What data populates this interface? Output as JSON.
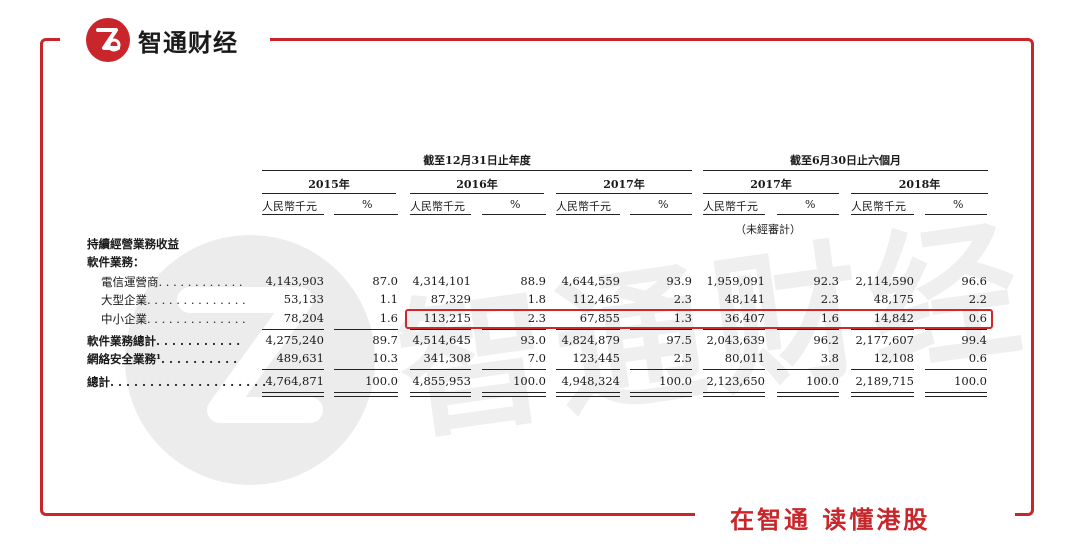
{
  "brand": {
    "name": "智通财经",
    "slogan": "在智通 读懂港股",
    "accent": "#c8262a"
  },
  "headers": {
    "group1": "截至12月31日止年度",
    "group2": "截至6月30日止六個月",
    "years": [
      "2015年",
      "2016年",
      "2017年",
      "2017年",
      "2018年"
    ],
    "unit": "人民幣千元",
    "pct": "%",
    "unaudited": "（未經審計）"
  },
  "rows": [
    {
      "label": "持續經營業務收益",
      "bold": true,
      "values": []
    },
    {
      "label": "軟件業務：",
      "bold": true,
      "values": []
    },
    {
      "label": "電信運營商. . . . . . . . . . . .",
      "bold": false,
      "values": [
        "4,143,903",
        "87.0",
        "4,314,101",
        "88.9",
        "4,644,559",
        "93.9",
        "1,959,091",
        "92.3",
        "2,114,590",
        "96.6"
      ]
    },
    {
      "label": "大型企業. . . . . . . . . . . . . .",
      "bold": false,
      "values": [
        "53,133",
        "1.1",
        "87,329",
        "1.8",
        "112,465",
        "2.3",
        "48,141",
        "2.3",
        "48,175",
        "2.2"
      ]
    },
    {
      "label": "中小企業. . . . . . . . . . . . . .",
      "bold": false,
      "values": [
        "78,204",
        "1.6",
        "113,215",
        "2.3",
        "67,855",
        "1.3",
        "36,407",
        "1.6",
        "14,842",
        "0.6"
      ]
    },
    {
      "label": "軟件業務總計. . . . . . . . . . .",
      "bold": true,
      "values": [
        "4,275,240",
        "89.7",
        "4,514,645",
        "93.0",
        "4,824,879",
        "97.5",
        "2,043,639",
        "96.2",
        "2,177,607",
        "99.4"
      ]
    },
    {
      "label": "網絡安全業務¹. . . . . . . . . .",
      "bold": true,
      "values": [
        "489,631",
        "10.3",
        "341,308",
        "7.0",
        "123,445",
        "2.5",
        "80,011",
        "3.8",
        "12,108",
        "0.6"
      ]
    },
    {
      "label": "總計. . . . . . . . . . . . . . . . . . . .",
      "bold": true,
      "values": [
        "4,764,871",
        "100.0",
        "4,855,953",
        "100.0",
        "4,948,324",
        "100.0",
        "2,123,650",
        "100.0",
        "2,189,715",
        "100.0"
      ]
    }
  ]
}
